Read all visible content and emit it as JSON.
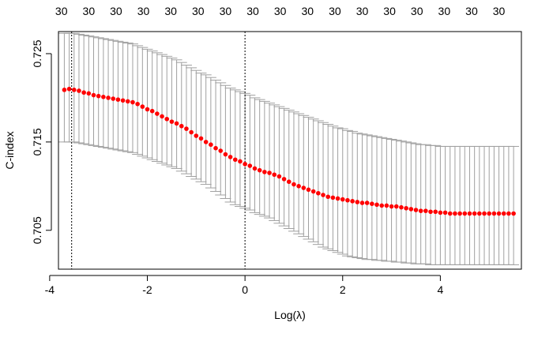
{
  "chart_data": {
    "type": "scatter",
    "xlabel": "Log(λ)",
    "ylabel": "C-index",
    "xlim": [
      -3.82,
      5.66
    ],
    "ylim": [
      0.7006,
      0.7275
    ],
    "x_ticks": [
      -4,
      -2,
      0,
      2,
      4
    ],
    "y_ticks": [
      0.705,
      0.715,
      0.725
    ],
    "x_tick_labels": [
      "-4",
      "-2",
      "0",
      "2",
      "4"
    ],
    "y_tick_labels": [
      "0.705",
      "0.715",
      "0.725"
    ],
    "vlines": [
      -3.55,
      0.0
    ],
    "top_labels": [
      "30",
      "30",
      "30",
      "30",
      "30",
      "30",
      "30",
      "30",
      "30",
      "30",
      "30",
      "30",
      "30",
      "30",
      "30",
      "30",
      "30"
    ],
    "top_label_x": [
      -3.76,
      -3.2,
      -2.64,
      -2.08,
      -1.52,
      -0.96,
      -0.4,
      0.16,
      0.72,
      1.28,
      1.84,
      2.4,
      2.96,
      3.52,
      4.08,
      4.64,
      5.2
    ],
    "series": [
      {
        "x": [
          -3.7,
          -3.6,
          -3.5,
          -3.4,
          -3.3,
          -3.2,
          -3.1,
          -3.0,
          -2.9,
          -2.8,
          -2.7,
          -2.6,
          -2.5,
          -2.4,
          -2.3,
          -2.2,
          -2.1,
          -2.0,
          -1.9,
          -1.8,
          -1.7,
          -1.6,
          -1.5,
          -1.4,
          -1.3,
          -1.2,
          -1.1,
          -1.0,
          -0.9,
          -0.8,
          -0.7,
          -0.6,
          -0.5,
          -0.4,
          -0.3,
          -0.2,
          -0.1,
          0.0,
          0.1,
          0.2,
          0.3,
          0.4,
          0.5,
          0.6,
          0.7,
          0.8,
          0.9,
          1.0,
          1.1,
          1.2,
          1.3,
          1.4,
          1.5,
          1.6,
          1.7,
          1.8,
          1.9,
          2.0,
          2.1,
          2.2,
          2.3,
          2.4,
          2.5,
          2.6,
          2.7,
          2.8,
          2.9,
          3.0,
          3.1,
          3.2,
          3.3,
          3.4,
          3.5,
          3.6,
          3.7,
          3.8,
          3.9,
          4.0,
          4.1,
          4.2,
          4.3,
          4.4,
          4.5,
          4.6,
          4.7,
          4.8,
          4.9,
          5.0,
          5.1,
          5.2,
          5.3,
          5.4,
          5.5
        ],
        "values": [
          0.7209,
          0.721,
          0.7209,
          0.7208,
          0.7206,
          0.7205,
          0.7203,
          0.7202,
          0.7201,
          0.72,
          0.7199,
          0.7198,
          0.7197,
          0.7196,
          0.7195,
          0.7193,
          0.719,
          0.7187,
          0.7185,
          0.7182,
          0.7179,
          0.7176,
          0.7173,
          0.7171,
          0.7168,
          0.7165,
          0.7161,
          0.7157,
          0.7154,
          0.715,
          0.7147,
          0.7143,
          0.714,
          0.7136,
          0.7133,
          0.713,
          0.7128,
          0.7125,
          0.7123,
          0.712,
          0.7118,
          0.7116,
          0.7115,
          0.7113,
          0.7111,
          0.7108,
          0.7105,
          0.7102,
          0.71,
          0.7098,
          0.7096,
          0.7094,
          0.7092,
          0.709,
          0.7088,
          0.7087,
          0.7086,
          0.7085,
          0.7084,
          0.7083,
          0.7082,
          0.7081,
          0.7081,
          0.708,
          0.7079,
          0.7078,
          0.7078,
          0.7077,
          0.7077,
          0.7076,
          0.7075,
          0.7074,
          0.7073,
          0.7072,
          0.7072,
          0.7071,
          0.7071,
          0.707,
          0.707,
          0.7069,
          0.7069,
          0.7069,
          0.7069,
          0.7069,
          0.7069,
          0.7069,
          0.7069,
          0.7069,
          0.7069,
          0.7069,
          0.7069,
          0.7069,
          0.7069
        ],
        "upper": [
          0.7273,
          0.7273,
          0.7273,
          0.7272,
          0.7271,
          0.727,
          0.7269,
          0.7268,
          0.7267,
          0.7266,
          0.7265,
          0.7264,
          0.7263,
          0.7262,
          0.7261,
          0.7259,
          0.7257,
          0.7255,
          0.7253,
          0.7251,
          0.7249,
          0.7247,
          0.7245,
          0.7243,
          0.724,
          0.7237,
          0.7234,
          0.7231,
          0.7228,
          0.7226,
          0.7223,
          0.722,
          0.7217,
          0.7214,
          0.7211,
          0.7209,
          0.7207,
          0.7205,
          0.7203,
          0.72,
          0.7198,
          0.7196,
          0.7194,
          0.7192,
          0.719,
          0.7188,
          0.7186,
          0.7184,
          0.7182,
          0.718,
          0.7178,
          0.7176,
          0.7174,
          0.7172,
          0.717,
          0.7168,
          0.7166,
          0.7165,
          0.7163,
          0.7162,
          0.716,
          0.7159,
          0.7158,
          0.7157,
          0.7156,
          0.7155,
          0.7154,
          0.7153,
          0.7152,
          0.7151,
          0.715,
          0.7149,
          0.7148,
          0.7147,
          0.7147,
          0.7146,
          0.7146,
          0.7145,
          0.7145,
          0.7145,
          0.7145,
          0.7145,
          0.7145,
          0.7145,
          0.7145,
          0.7145,
          0.7145,
          0.7145,
          0.7145,
          0.7145,
          0.7145,
          0.7145,
          0.7145
        ],
        "lower": [
          0.715,
          0.715,
          0.715,
          0.7149,
          0.7148,
          0.7147,
          0.7146,
          0.7145,
          0.7144,
          0.7143,
          0.7142,
          0.7141,
          0.714,
          0.7139,
          0.7138,
          0.7136,
          0.7134,
          0.7132,
          0.713,
          0.7128,
          0.7126,
          0.7124,
          0.7122,
          0.712,
          0.7117,
          0.7114,
          0.7111,
          0.7108,
          0.7105,
          0.7102,
          0.7098,
          0.7094,
          0.709,
          0.7086,
          0.7082,
          0.7079,
          0.7077,
          0.7075,
          0.7073,
          0.707,
          0.7068,
          0.7066,
          0.7064,
          0.7061,
          0.7058,
          0.7055,
          0.7052,
          0.7049,
          0.7046,
          0.7043,
          0.704,
          0.7037,
          0.7034,
          0.7031,
          0.7029,
          0.7027,
          0.7025,
          0.7023,
          0.7021,
          0.702,
          0.7019,
          0.7018,
          0.7017,
          0.7017,
          0.7016,
          0.7016,
          0.7015,
          0.7015,
          0.7014,
          0.7014,
          0.7013,
          0.7013,
          0.7012,
          0.7012,
          0.7012,
          0.7011,
          0.7011,
          0.7011,
          0.7011,
          0.7011,
          0.7011,
          0.7011,
          0.7011,
          0.7011,
          0.7011,
          0.7011,
          0.7011,
          0.7011,
          0.7011,
          0.7011,
          0.7011,
          0.7011,
          0.7011
        ]
      }
    ],
    "grid": false,
    "point_color": "#ff0000",
    "errorbar_color": "#a0a0a0",
    "axis_color": "#000000"
  }
}
